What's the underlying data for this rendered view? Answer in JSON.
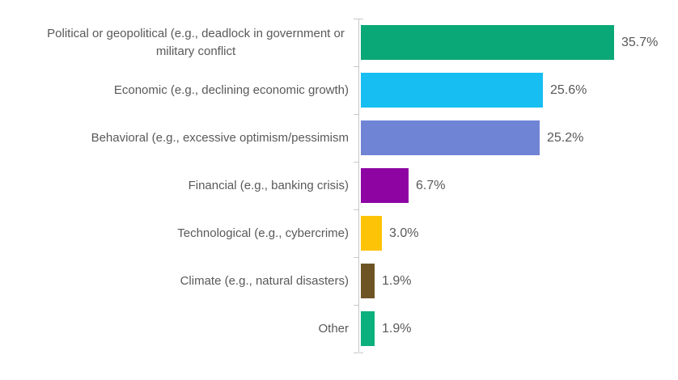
{
  "chart_data": {
    "type": "bar",
    "orientation": "horizontal",
    "title": "",
    "xlabel": "",
    "ylabel": "",
    "xlim": [
      0,
      40
    ],
    "grid": false,
    "legend": false,
    "value_suffix": "%",
    "categories": [
      "Political or geopolitical (e.g., deadlock in government or military conflict",
      "Economic (e.g., declining economic growth)",
      "Behavioral (e.g., excessive optimism/pessimism",
      "Financial (e.g., banking crisis)",
      "Technological (e.g., cybercrime)",
      "Climate (e.g., natural disasters)",
      "Other"
    ],
    "values": [
      35.7,
      25.6,
      25.2,
      6.7,
      3.0,
      1.9,
      1.9
    ],
    "value_labels": [
      "35.7%",
      "25.6%",
      "25.2%",
      "6.7%",
      "3.0%",
      "1.9%",
      "1.9%"
    ],
    "bar_colors": [
      "#0aa876",
      "#16bef2",
      "#7084d6",
      "#8e04a3",
      "#fdc306",
      "#6e5424",
      "#0cb07d"
    ],
    "colors": {
      "label_text": "#595959",
      "value_text": "#595959",
      "axis": "#c8c8c8",
      "background": "#ffffff"
    }
  }
}
